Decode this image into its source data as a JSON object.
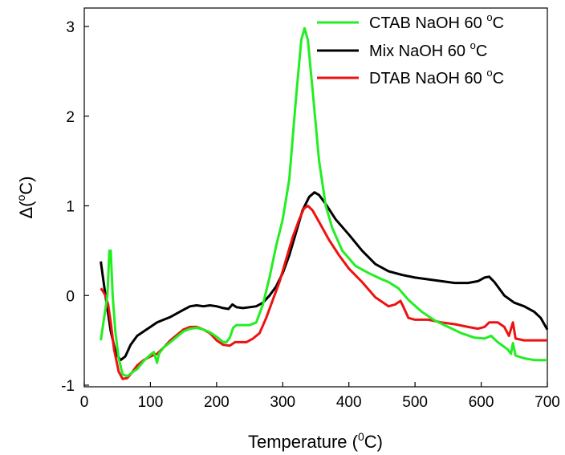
{
  "chart_data": {
    "type": "line",
    "xlabel": "Temperature",
    "xlabel_unit": "(",
    "xlabel_sup": "0",
    "xlabel_unit_end": "C)",
    "ylabel": "Δ(",
    "ylabel_sup": "o",
    "ylabel_end": "C)",
    "xlim": [
      0,
      700
    ],
    "ylim": [
      -1,
      3.2
    ],
    "xticks": [
      0,
      100,
      200,
      300,
      400,
      500,
      600,
      700
    ],
    "yticks": [
      -1,
      0,
      1,
      2,
      3
    ],
    "xtick_labels": [
      "0",
      "100",
      "200",
      "300",
      "400",
      "500",
      "600",
      "700"
    ],
    "ytick_labels": [
      "-1",
      "0",
      "1",
      "2",
      "3"
    ],
    "grid": false,
    "legend_position": "top-right",
    "series": [
      {
        "name": "CTAB NaOH 60 ",
        "name_sup": "o",
        "name_end": "C",
        "color": "#22ee22",
        "points": [
          [
            25,
            -0.5
          ],
          [
            30,
            -0.25
          ],
          [
            35,
            0.0
          ],
          [
            38,
            0.5
          ],
          [
            40,
            0.5
          ],
          [
            43,
            0.0
          ],
          [
            47,
            -0.4
          ],
          [
            52,
            -0.7
          ],
          [
            58,
            -0.88
          ],
          [
            65,
            -0.9
          ],
          [
            72,
            -0.86
          ],
          [
            80,
            -0.82
          ],
          [
            90,
            -0.73
          ],
          [
            100,
            -0.66
          ],
          [
            105,
            -0.63
          ],
          [
            108,
            -0.7
          ],
          [
            110,
            -0.75
          ],
          [
            113,
            -0.65
          ],
          [
            120,
            -0.58
          ],
          [
            130,
            -0.52
          ],
          [
            140,
            -0.46
          ],
          [
            150,
            -0.4
          ],
          [
            160,
            -0.37
          ],
          [
            170,
            -0.36
          ],
          [
            180,
            -0.38
          ],
          [
            190,
            -0.41
          ],
          [
            200,
            -0.46
          ],
          [
            210,
            -0.52
          ],
          [
            215,
            -0.52
          ],
          [
            220,
            -0.47
          ],
          [
            225,
            -0.36
          ],
          [
            230,
            -0.33
          ],
          [
            240,
            -0.33
          ],
          [
            250,
            -0.33
          ],
          [
            260,
            -0.3
          ],
          [
            270,
            -0.1
          ],
          [
            280,
            0.2
          ],
          [
            290,
            0.55
          ],
          [
            300,
            0.85
          ],
          [
            310,
            1.3
          ],
          [
            320,
            2.2
          ],
          [
            328,
            2.85
          ],
          [
            333,
            2.98
          ],
          [
            338,
            2.85
          ],
          [
            345,
            2.3
          ],
          [
            355,
            1.5
          ],
          [
            365,
            1.0
          ],
          [
            375,
            0.75
          ],
          [
            390,
            0.5
          ],
          [
            410,
            0.33
          ],
          [
            430,
            0.25
          ],
          [
            450,
            0.18
          ],
          [
            460,
            0.15
          ],
          [
            475,
            0.08
          ],
          [
            490,
            -0.05
          ],
          [
            510,
            -0.18
          ],
          [
            530,
            -0.28
          ],
          [
            550,
            -0.35
          ],
          [
            570,
            -0.42
          ],
          [
            590,
            -0.47
          ],
          [
            605,
            -0.48
          ],
          [
            615,
            -0.45
          ],
          [
            625,
            -0.52
          ],
          [
            640,
            -0.6
          ],
          [
            645,
            -0.65
          ],
          [
            648,
            -0.53
          ],
          [
            652,
            -0.67
          ],
          [
            665,
            -0.7
          ],
          [
            680,
            -0.72
          ],
          [
            700,
            -0.72
          ]
        ]
      },
      {
        "name": "Mix NaOH 60 ",
        "name_sup": "o",
        "name_end": "C",
        "color": "#000000",
        "points": [
          [
            25,
            0.38
          ],
          [
            32,
            0.0
          ],
          [
            40,
            -0.4
          ],
          [
            48,
            -0.65
          ],
          [
            55,
            -0.72
          ],
          [
            62,
            -0.68
          ],
          [
            70,
            -0.55
          ],
          [
            80,
            -0.45
          ],
          [
            90,
            -0.4
          ],
          [
            100,
            -0.35
          ],
          [
            110,
            -0.3
          ],
          [
            120,
            -0.27
          ],
          [
            130,
            -0.24
          ],
          [
            140,
            -0.2
          ],
          [
            150,
            -0.16
          ],
          [
            160,
            -0.12
          ],
          [
            170,
            -0.11
          ],
          [
            180,
            -0.12
          ],
          [
            190,
            -0.11
          ],
          [
            200,
            -0.12
          ],
          [
            210,
            -0.14
          ],
          [
            218,
            -0.15
          ],
          [
            224,
            -0.1
          ],
          [
            230,
            -0.13
          ],
          [
            240,
            -0.14
          ],
          [
            250,
            -0.13
          ],
          [
            260,
            -0.12
          ],
          [
            270,
            -0.08
          ],
          [
            280,
            0.0
          ],
          [
            290,
            0.1
          ],
          [
            300,
            0.25
          ],
          [
            310,
            0.45
          ],
          [
            320,
            0.7
          ],
          [
            330,
            0.95
          ],
          [
            340,
            1.1
          ],
          [
            348,
            1.15
          ],
          [
            355,
            1.12
          ],
          [
            365,
            1.02
          ],
          [
            380,
            0.85
          ],
          [
            400,
            0.68
          ],
          [
            420,
            0.5
          ],
          [
            440,
            0.35
          ],
          [
            460,
            0.27
          ],
          [
            480,
            0.23
          ],
          [
            500,
            0.2
          ],
          [
            520,
            0.18
          ],
          [
            540,
            0.16
          ],
          [
            560,
            0.14
          ],
          [
            580,
            0.14
          ],
          [
            595,
            0.16
          ],
          [
            605,
            0.2
          ],
          [
            612,
            0.21
          ],
          [
            620,
            0.15
          ],
          [
            635,
            0.0
          ],
          [
            650,
            -0.08
          ],
          [
            665,
            -0.12
          ],
          [
            680,
            -0.18
          ],
          [
            690,
            -0.25
          ],
          [
            700,
            -0.38
          ]
        ]
      },
      {
        "name": "DTAB NaOH 60 ",
        "name_sup": "o",
        "name_end": "C",
        "color": "#ee1111",
        "points": [
          [
            25,
            0.08
          ],
          [
            28,
            0.05
          ],
          [
            32,
            0.0
          ],
          [
            36,
            -0.1
          ],
          [
            40,
            -0.3
          ],
          [
            45,
            -0.6
          ],
          [
            52,
            -0.85
          ],
          [
            58,
            -0.93
          ],
          [
            65,
            -0.92
          ],
          [
            72,
            -0.86
          ],
          [
            80,
            -0.78
          ],
          [
            90,
            -0.72
          ],
          [
            100,
            -0.68
          ],
          [
            110,
            -0.65
          ],
          [
            120,
            -0.58
          ],
          [
            130,
            -0.5
          ],
          [
            140,
            -0.44
          ],
          [
            150,
            -0.38
          ],
          [
            160,
            -0.35
          ],
          [
            170,
            -0.35
          ],
          [
            180,
            -0.38
          ],
          [
            190,
            -0.42
          ],
          [
            200,
            -0.5
          ],
          [
            210,
            -0.55
          ],
          [
            220,
            -0.56
          ],
          [
            228,
            -0.52
          ],
          [
            235,
            -0.52
          ],
          [
            245,
            -0.52
          ],
          [
            255,
            -0.48
          ],
          [
            265,
            -0.42
          ],
          [
            275,
            -0.25
          ],
          [
            285,
            -0.05
          ],
          [
            295,
            0.15
          ],
          [
            305,
            0.4
          ],
          [
            315,
            0.65
          ],
          [
            325,
            0.85
          ],
          [
            332,
            0.97
          ],
          [
            338,
            1.0
          ],
          [
            345,
            0.95
          ],
          [
            355,
            0.82
          ],
          [
            370,
            0.62
          ],
          [
            385,
            0.45
          ],
          [
            400,
            0.3
          ],
          [
            420,
            0.15
          ],
          [
            440,
            -0.02
          ],
          [
            460,
            -0.12
          ],
          [
            470,
            -0.1
          ],
          [
            478,
            -0.06
          ],
          [
            482,
            -0.12
          ],
          [
            490,
            -0.25
          ],
          [
            500,
            -0.27
          ],
          [
            520,
            -0.27
          ],
          [
            540,
            -0.3
          ],
          [
            560,
            -0.32
          ],
          [
            580,
            -0.35
          ],
          [
            595,
            -0.37
          ],
          [
            605,
            -0.35
          ],
          [
            612,
            -0.3
          ],
          [
            625,
            -0.3
          ],
          [
            635,
            -0.35
          ],
          [
            642,
            -0.45
          ],
          [
            648,
            -0.3
          ],
          [
            652,
            -0.48
          ],
          [
            665,
            -0.5
          ],
          [
            680,
            -0.5
          ],
          [
            700,
            -0.5
          ]
        ]
      }
    ]
  }
}
